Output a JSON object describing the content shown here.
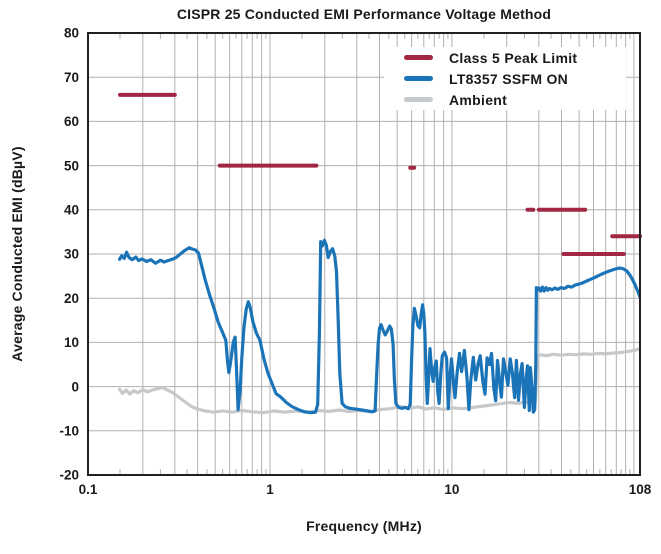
{
  "chart_data": {
    "type": "line",
    "title": "CISPR 25 Conducted EMI Performance Voltage Method",
    "xlabel": "Frequency (MHz)",
    "ylabel": "Average Conducted EMI (dBµV)",
    "x_scale": "log",
    "xlim": [
      0.1,
      108
    ],
    "ylim": [
      -20,
      80
    ],
    "x_ticks": [
      {
        "value": 0.1,
        "label": "0.1"
      },
      {
        "value": 1,
        "label": "1"
      },
      {
        "value": 10,
        "label": "10"
      },
      {
        "value": 108,
        "label": "108"
      }
    ],
    "y_ticks": [
      {
        "value": 80,
        "label": "80"
      },
      {
        "value": 70,
        "label": "70"
      },
      {
        "value": 60,
        "label": "60"
      },
      {
        "value": 50,
        "label": "50"
      },
      {
        "value": 40,
        "label": "40"
      },
      {
        "value": 30,
        "label": "30"
      },
      {
        "value": 20,
        "label": "20"
      },
      {
        "value": 10,
        "label": "10"
      },
      {
        "value": 0,
        "label": "0"
      },
      {
        "value": -10,
        "label": "-10"
      },
      {
        "value": -20,
        "label": "-20"
      }
    ],
    "grid": true,
    "legend_position": "upper-right-inside",
    "colors": {
      "grid": "#b0b0b0",
      "frame": "#231f20",
      "text": "#1a1a1a",
      "background": "#ffffff",
      "limit": "#A22743",
      "ssfm": "#1B74B8",
      "ambient": "#C6C9CC"
    },
    "series": [
      {
        "name": "Class 5 Peak Limit",
        "style": "segments",
        "color": "#A22743",
        "stroke_width": 4,
        "segments": [
          {
            "from": 0.15,
            "to": 0.3,
            "level": 66
          },
          {
            "from": 0.53,
            "to": 1.8,
            "level": 50
          },
          {
            "from": 5.9,
            "to": 6.2,
            "level": 49.5
          },
          {
            "from": 26,
            "to": 28,
            "level": 40
          },
          {
            "from": 30,
            "to": 54,
            "level": 40
          },
          {
            "from": 41,
            "to": 88,
            "level": 30
          },
          {
            "from": 76,
            "to": 108,
            "level": 34
          }
        ]
      },
      {
        "name": "LT8357 SSFM ON",
        "style": "line",
        "color": "#1B74B8",
        "stroke_width": 3.2,
        "points": [
          [
            0.149,
            28.8
          ],
          [
            0.153,
            29.6
          ],
          [
            0.158,
            29.0
          ],
          [
            0.163,
            30.4
          ],
          [
            0.168,
            29.2
          ],
          [
            0.175,
            28.7
          ],
          [
            0.183,
            29.3
          ],
          [
            0.19,
            28.5
          ],
          [
            0.198,
            28.9
          ],
          [
            0.21,
            28.3
          ],
          [
            0.222,
            28.7
          ],
          [
            0.235,
            27.9
          ],
          [
            0.25,
            28.6
          ],
          [
            0.262,
            28.2
          ],
          [
            0.275,
            28.5
          ],
          [
            0.29,
            28.8
          ],
          [
            0.305,
            29.2
          ],
          [
            0.32,
            29.9
          ],
          [
            0.34,
            30.8
          ],
          [
            0.36,
            31.4
          ],
          [
            0.375,
            31.1
          ],
          [
            0.39,
            30.9
          ],
          [
            0.405,
            30.2
          ],
          [
            0.42,
            27.6
          ],
          [
            0.44,
            24.2
          ],
          [
            0.465,
            20.8
          ],
          [
            0.49,
            18.0
          ],
          [
            0.52,
            14.5
          ],
          [
            0.55,
            12.2
          ],
          [
            0.572,
            10.5
          ],
          [
            0.585,
            5.5
          ],
          [
            0.595,
            3.2
          ],
          [
            0.61,
            6.0
          ],
          [
            0.628,
            10.0
          ],
          [
            0.643,
            11.2
          ],
          [
            0.655,
            4.0
          ],
          [
            0.668,
            -5.2
          ],
          [
            0.685,
            -1.0
          ],
          [
            0.7,
            6.5
          ],
          [
            0.72,
            13.5
          ],
          [
            0.74,
            17.5
          ],
          [
            0.76,
            19.2
          ],
          [
            0.78,
            17.8
          ],
          [
            0.805,
            14.8
          ],
          [
            0.84,
            12.2
          ],
          [
            0.88,
            10.5
          ],
          [
            0.93,
            6.0
          ],
          [
            0.975,
            3.0
          ],
          [
            1.02,
            1.0
          ],
          [
            1.08,
            -1.6
          ],
          [
            1.15,
            -2.4
          ],
          [
            1.23,
            -3.6
          ],
          [
            1.32,
            -4.5
          ],
          [
            1.43,
            -5.2
          ],
          [
            1.55,
            -5.7
          ],
          [
            1.68,
            -5.9
          ],
          [
            1.78,
            -5.8
          ],
          [
            1.83,
            -4.0
          ],
          [
            1.87,
            12.0
          ],
          [
            1.9,
            32.8
          ],
          [
            1.94,
            31.8
          ],
          [
            1.99,
            33.1
          ],
          [
            2.04,
            32.0
          ],
          [
            2.09,
            29.2
          ],
          [
            2.15,
            30.6
          ],
          [
            2.21,
            31.2
          ],
          [
            2.27,
            29.5
          ],
          [
            2.32,
            26.0
          ],
          [
            2.37,
            15.0
          ],
          [
            2.42,
            3.0
          ],
          [
            2.49,
            -3.8
          ],
          [
            2.6,
            -4.6
          ],
          [
            2.75,
            -4.9
          ],
          [
            2.95,
            -5.1
          ],
          [
            3.2,
            -5.3
          ],
          [
            3.45,
            -5.5
          ],
          [
            3.65,
            -5.7
          ],
          [
            3.78,
            -5.5
          ],
          [
            3.85,
            2.0
          ],
          [
            3.93,
            9.5
          ],
          [
            4.0,
            13.2
          ],
          [
            4.08,
            14.0
          ],
          [
            4.18,
            12.8
          ],
          [
            4.3,
            11.7
          ],
          [
            4.42,
            12.6
          ],
          [
            4.55,
            13.7
          ],
          [
            4.65,
            13.0
          ],
          [
            4.75,
            9.5
          ],
          [
            4.83,
            1.5
          ],
          [
            4.92,
            -3.8
          ],
          [
            5.1,
            -4.7
          ],
          [
            5.3,
            -4.9
          ],
          [
            5.55,
            -4.7
          ],
          [
            5.75,
            -5.0
          ],
          [
            5.9,
            -4.0
          ],
          [
            6.0,
            6.0
          ],
          [
            6.1,
            14.0
          ],
          [
            6.22,
            17.7
          ],
          [
            6.35,
            16.0
          ],
          [
            6.5,
            13.8
          ],
          [
            6.65,
            13.3
          ],
          [
            6.78,
            16.5
          ],
          [
            6.9,
            18.5
          ],
          [
            7.0,
            16.5
          ],
          [
            7.1,
            12.0
          ],
          [
            7.22,
            2.0
          ],
          [
            7.32,
            -3.8
          ],
          [
            7.45,
            2.5
          ],
          [
            7.58,
            8.6
          ],
          [
            7.72,
            4.0
          ],
          [
            7.88,
            1.2
          ],
          [
            8.05,
            4.5
          ],
          [
            8.2,
            5.8
          ],
          [
            8.35,
            -1.0
          ],
          [
            8.5,
            -3.8
          ],
          [
            8.68,
            3.0
          ],
          [
            8.85,
            7.0
          ],
          [
            9.1,
            7.8
          ],
          [
            9.35,
            6.5
          ],
          [
            9.55,
            -5.0
          ],
          [
            9.75,
            2.0
          ],
          [
            9.95,
            6.3
          ],
          [
            10.2,
            1.0
          ],
          [
            10.4,
            -2.5
          ],
          [
            10.7,
            3.5
          ],
          [
            11.0,
            7.5
          ],
          [
            11.3,
            3.4
          ],
          [
            11.7,
            8.2
          ],
          [
            12.1,
            2.0
          ],
          [
            12.4,
            -5.2
          ],
          [
            12.7,
            1.5
          ],
          [
            13.1,
            6.6
          ],
          [
            13.5,
            1.5
          ],
          [
            13.9,
            5.0
          ],
          [
            14.3,
            7.0
          ],
          [
            14.8,
            1.0
          ],
          [
            15.2,
            -1.7
          ],
          [
            15.6,
            6.5
          ],
          [
            16.1,
            5.0
          ],
          [
            16.5,
            7.5
          ],
          [
            17.0,
            -0.5
          ],
          [
            17.4,
            -3.2
          ],
          [
            17.8,
            5.9
          ],
          [
            18.3,
            1.0
          ],
          [
            18.7,
            -2.4
          ],
          [
            19.2,
            6.3
          ],
          [
            19.8,
            3.0
          ],
          [
            20.3,
            0.3
          ],
          [
            20.9,
            6.3
          ],
          [
            21.5,
            3.0
          ],
          [
            22.1,
            -2.5
          ],
          [
            22.6,
            5.9
          ],
          [
            23.2,
            -3.1
          ],
          [
            23.8,
            3.0
          ],
          [
            24.3,
            5.2
          ],
          [
            25.0,
            -4.7
          ],
          [
            25.6,
            2.0
          ],
          [
            26.0,
            4.7
          ],
          [
            26.6,
            -5.4
          ],
          [
            27.0,
            4.3
          ],
          [
            27.5,
            0.0
          ],
          [
            28.0,
            -5.8
          ],
          [
            28.5,
            -5.2
          ],
          [
            28.9,
            5.0
          ],
          [
            29.1,
            22.4
          ],
          [
            29.6,
            21.9
          ],
          [
            30.1,
            22.3
          ],
          [
            30.7,
            21.6
          ],
          [
            31.4,
            22.5
          ],
          [
            32.1,
            21.6
          ],
          [
            32.9,
            22.4
          ],
          [
            33.6,
            21.8
          ],
          [
            34.4,
            22.2
          ],
          [
            35.5,
            21.9
          ],
          [
            36.8,
            22.3
          ],
          [
            38.2,
            22.0
          ],
          [
            39.7,
            22.4
          ],
          [
            41.5,
            22.2
          ],
          [
            43.4,
            22.7
          ],
          [
            45.5,
            22.5
          ],
          [
            47.7,
            23.0
          ],
          [
            50.0,
            23.2
          ],
          [
            52.5,
            23.5
          ],
          [
            55.0,
            23.9
          ],
          [
            58.0,
            24.3
          ],
          [
            61.0,
            24.7
          ],
          [
            64.5,
            25.2
          ],
          [
            68.0,
            25.6
          ],
          [
            71.5,
            26.0
          ],
          [
            75.0,
            26.3
          ],
          [
            79.0,
            26.6
          ],
          [
            83.0,
            26.8
          ],
          [
            87.0,
            26.7
          ],
          [
            91.0,
            26.2
          ],
          [
            94.5,
            25.4
          ],
          [
            98.0,
            24.3
          ],
          [
            101.0,
            23.2
          ],
          [
            104.0,
            22.0
          ],
          [
            106.0,
            21.2
          ],
          [
            108.0,
            20.3
          ]
        ]
      },
      {
        "name": "Ambient",
        "style": "line",
        "color": "#C6C9CC",
        "stroke_width": 3.2,
        "points": [
          [
            0.149,
            -0.6
          ],
          [
            0.155,
            -1.5
          ],
          [
            0.162,
            -0.8
          ],
          [
            0.17,
            -1.7
          ],
          [
            0.178,
            -0.9
          ],
          [
            0.188,
            -1.4
          ],
          [
            0.2,
            -0.7
          ],
          [
            0.212,
            -1.2
          ],
          [
            0.225,
            -0.8
          ],
          [
            0.24,
            -0.5
          ],
          [
            0.255,
            -0.2
          ],
          [
            0.27,
            -0.7
          ],
          [
            0.285,
            -1.1
          ],
          [
            0.3,
            -1.7
          ],
          [
            0.32,
            -2.6
          ],
          [
            0.345,
            -3.6
          ],
          [
            0.37,
            -4.5
          ],
          [
            0.4,
            -5.1
          ],
          [
            0.44,
            -5.5
          ],
          [
            0.49,
            -5.8
          ],
          [
            0.55,
            -5.5
          ],
          [
            0.62,
            -5.8
          ],
          [
            0.7,
            -5.4
          ],
          [
            0.8,
            -5.7
          ],
          [
            0.92,
            -5.9
          ],
          [
            1.05,
            -5.5
          ],
          [
            1.2,
            -5.8
          ],
          [
            1.4,
            -5.5
          ],
          [
            1.6,
            -5.8
          ],
          [
            1.85,
            -5.4
          ],
          [
            2.1,
            -5.6
          ],
          [
            2.4,
            -5.3
          ],
          [
            2.7,
            -5.6
          ],
          [
            3.1,
            -5.4
          ],
          [
            3.5,
            -5.7
          ],
          [
            4.0,
            -5.2
          ],
          [
            4.6,
            -5.0
          ],
          [
            5.2,
            -4.5
          ],
          [
            5.8,
            -4.9
          ],
          [
            6.5,
            -4.6
          ],
          [
            7.2,
            -5.1
          ],
          [
            8.0,
            -4.8
          ],
          [
            9.0,
            -5.2
          ],
          [
            10.0,
            -4.8
          ],
          [
            11.5,
            -5.0
          ],
          [
            13.0,
            -4.7
          ],
          [
            15.0,
            -4.4
          ],
          [
            17.0,
            -4.1
          ],
          [
            19.0,
            -3.8
          ],
          [
            21.0,
            -3.6
          ],
          [
            23.0,
            -3.8
          ],
          [
            25.0,
            -3.5
          ],
          [
            27.0,
            -3.8
          ],
          [
            28.8,
            -3.4
          ],
          [
            29.2,
            3.0
          ],
          [
            29.5,
            7.0
          ],
          [
            31.0,
            7.2
          ],
          [
            33.0,
            7.0
          ],
          [
            36.0,
            7.3
          ],
          [
            40.0,
            7.1
          ],
          [
            44.0,
            7.3
          ],
          [
            48.0,
            7.2
          ],
          [
            53.0,
            7.4
          ],
          [
            58.0,
            7.3
          ],
          [
            64.0,
            7.5
          ],
          [
            70.0,
            7.4
          ],
          [
            77.0,
            7.6
          ],
          [
            84.0,
            7.7
          ],
          [
            91.0,
            7.9
          ],
          [
            98.0,
            8.1
          ],
          [
            103.0,
            8.3
          ],
          [
            108.0,
            8.6
          ]
        ]
      }
    ]
  }
}
